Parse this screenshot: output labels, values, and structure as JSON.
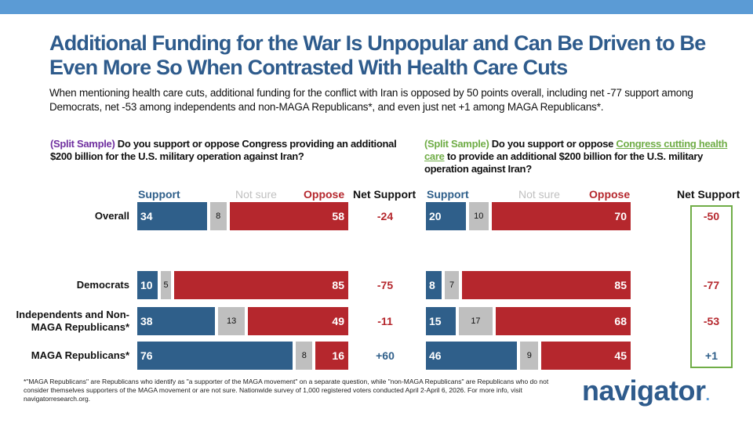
{
  "header": {
    "title": "Additional Funding for the War Is Unpopular and Can Be Driven to Be Even More So When Contrasted With Health Care Cuts",
    "subtitle": "When mentioning health care cuts, additional funding for the conflict with Iran is opposed by 50 points overall, including net -77 support among Democrats, net -53 among independents and non-MAGA Republicans*, and even just net +1 among MAGA Republicans*."
  },
  "colors": {
    "support": "#2f5f8a",
    "not_sure": "#bfbfbf",
    "oppose": "#b5272d",
    "highlight": "#70ad47",
    "split_left": "#7030a0"
  },
  "chart_data": [
    {
      "type": "bar",
      "stacked": true,
      "orientation": "horizontal",
      "question_tag": "(Split Sample)",
      "question": "Do you support or oppose Congress providing an additional $200 billion for the U.S. military operation against Iran?",
      "legend": [
        "Support",
        "Not sure",
        "Oppose"
      ],
      "net_header": "Net Support",
      "categories": [
        "Overall",
        "Democrats",
        "Independents and Non-MAGA Republicans*",
        "MAGA Republicans*"
      ],
      "series": [
        {
          "name": "Support",
          "values": [
            34,
            10,
            38,
            76
          ]
        },
        {
          "name": "Not sure",
          "values": [
            8,
            5,
            13,
            8
          ]
        },
        {
          "name": "Oppose",
          "values": [
            58,
            85,
            49,
            16
          ]
        }
      ],
      "net": [
        "-24",
        "-75",
        "-11",
        "+60"
      ]
    },
    {
      "type": "bar",
      "stacked": true,
      "orientation": "horizontal",
      "question_tag": "(Split Sample)",
      "question_pre": "Do you support or oppose ",
      "question_highlight": "Congress cutting health care",
      "question_post": " to provide an additional $200 billion for the U.S. military operation against Iran?",
      "legend": [
        "Support",
        "Not sure",
        "Oppose"
      ],
      "net_header": "Net Support",
      "series": [
        {
          "name": "Support",
          "values": [
            20,
            8,
            15,
            46
          ]
        },
        {
          "name": "Not sure",
          "values": [
            10,
            7,
            17,
            9
          ]
        },
        {
          "name": "Oppose",
          "values": [
            70,
            85,
            68,
            45
          ]
        }
      ],
      "net": [
        "-50",
        "-77",
        "-53",
        "+1"
      ]
    }
  ],
  "footnote": "*\"MAGA Republicans\" are Republicans who identify as \"a supporter of the MAGA movement\" on a separate question, while \"non-MAGA Republicans\" are Republicans who do not consider themselves supporters of the MAGA movement or are not sure. Nationwide survey of 1,000 registered voters conducted April 2-April 6, 2026. For more info, visit navigatorresearch.org.",
  "logo": {
    "text": "navigator",
    "dot": "."
  }
}
